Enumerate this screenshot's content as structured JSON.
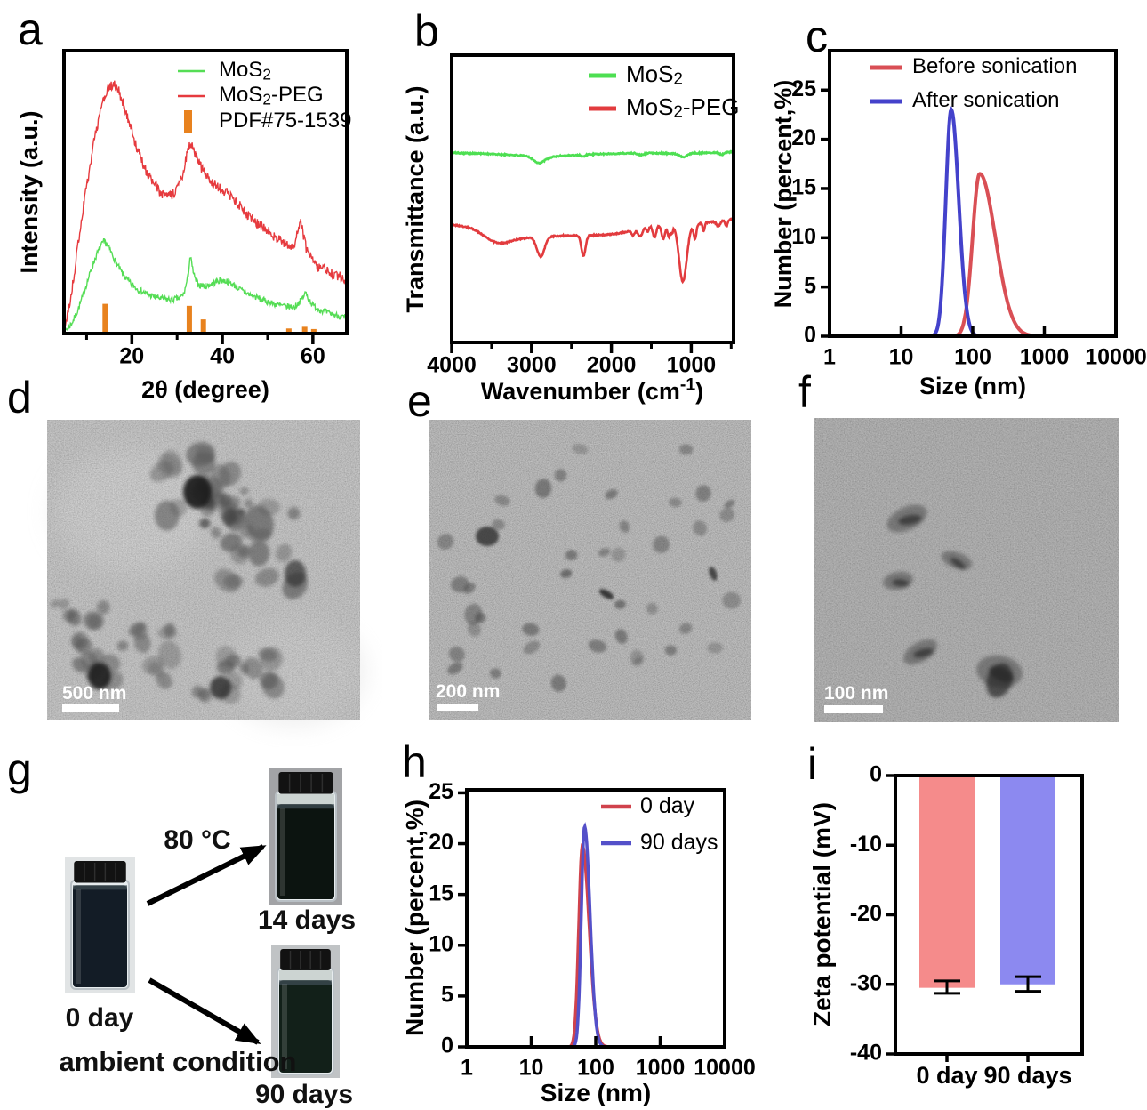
{
  "figure": {
    "panels": [
      {
        "id": "a",
        "letter": "a"
      },
      {
        "id": "b",
        "letter": "b"
      },
      {
        "id": "c",
        "letter": "c"
      },
      {
        "id": "d",
        "letter": "d",
        "scale_bar": "500 nm"
      },
      {
        "id": "e",
        "letter": "e",
        "scale_bar": "200 nm"
      },
      {
        "id": "f",
        "letter": "f",
        "scale_bar": "100 nm"
      },
      {
        "id": "g",
        "letter": "g",
        "labels": {
          "start": "0 day",
          "heat_condition": "80 °C",
          "heat_result": "14 days",
          "ambient_condition": "ambient condition",
          "ambient_result": "90 days"
        }
      },
      {
        "id": "h",
        "letter": "h"
      },
      {
        "id": "i",
        "letter": "i"
      }
    ]
  },
  "chart_data": [
    {
      "id": "a",
      "type": "line",
      "subtype": "xrd",
      "xlabel_parts": [
        "2θ (degree)"
      ],
      "ylabel_parts": [
        "Intensity (a.u.)"
      ],
      "xlim": [
        5,
        67.5
      ],
      "x_ticks": [
        20,
        40,
        60
      ],
      "x_minor_ticks": [
        10,
        30,
        50
      ],
      "legend": [
        {
          "parts": [
            "MoS",
            {
              "sub": "2"
            }
          ],
          "color": "#55dd55",
          "marker": "line"
        },
        {
          "parts": [
            "MoS",
            {
              "sub": "2"
            },
            "-PEG"
          ],
          "color": "#e63a3e",
          "marker": "line"
        },
        {
          "parts": [
            "PDF#75-1539"
          ],
          "color": "#e8821e",
          "marker": "bar"
        }
      ],
      "series": [
        {
          "name": "MoS2-PEG",
          "color": "#e63a3e",
          "noise": 0.018,
          "keypoints": [
            [
              5,
              0.02
            ],
            [
              6,
              0.08
            ],
            [
              7,
              0.18
            ],
            [
              8,
              0.3
            ],
            [
              9,
              0.42
            ],
            [
              10,
              0.52
            ],
            [
              11,
              0.62
            ],
            [
              12,
              0.71
            ],
            [
              13,
              0.78
            ],
            [
              14,
              0.84
            ],
            [
              15,
              0.87
            ],
            [
              16,
              0.88
            ],
            [
              17,
              0.86
            ],
            [
              18,
              0.82
            ],
            [
              19,
              0.77
            ],
            [
              20,
              0.72
            ],
            [
              21,
              0.66
            ],
            [
              22,
              0.62
            ],
            [
              23,
              0.58
            ],
            [
              24,
              0.55
            ],
            [
              25,
              0.525
            ],
            [
              26,
              0.505
            ],
            [
              27,
              0.49
            ],
            [
              28,
              0.485
            ],
            [
              29,
              0.49
            ],
            [
              30,
              0.51
            ],
            [
              31,
              0.55
            ],
            [
              32,
              0.62
            ],
            [
              32.8,
              0.67
            ],
            [
              33.5,
              0.66
            ],
            [
              34.5,
              0.62
            ],
            [
              35.5,
              0.58
            ],
            [
              37,
              0.545
            ],
            [
              38.5,
              0.525
            ],
            [
              40,
              0.51
            ],
            [
              41.5,
              0.49
            ],
            [
              43,
              0.465
            ],
            [
              45,
              0.43
            ],
            [
              47,
              0.4
            ],
            [
              49,
              0.375
            ],
            [
              51,
              0.35
            ],
            [
              53,
              0.325
            ],
            [
              55,
              0.305
            ],
            [
              56,
              0.315
            ],
            [
              56.8,
              0.38
            ],
            [
              57.3,
              0.41
            ],
            [
              57.8,
              0.36
            ],
            [
              58.5,
              0.3
            ],
            [
              59.5,
              0.265
            ],
            [
              61,
              0.24
            ],
            [
              63,
              0.22
            ],
            [
              65,
              0.205
            ],
            [
              67.5,
              0.19
            ]
          ]
        },
        {
          "name": "MoS2",
          "color": "#55dd55",
          "noise": 0.011,
          "keypoints": [
            [
              5,
              0.01
            ],
            [
              6,
              0.02
            ],
            [
              7,
              0.045
            ],
            [
              8,
              0.08
            ],
            [
              9,
              0.125
            ],
            [
              10,
              0.175
            ],
            [
              11,
              0.225
            ],
            [
              12,
              0.27
            ],
            [
              13,
              0.305
            ],
            [
              13.8,
              0.325
            ],
            [
              14.5,
              0.315
            ],
            [
              15.5,
              0.285
            ],
            [
              16.5,
              0.25
            ],
            [
              18,
              0.21
            ],
            [
              19.5,
              0.18
            ],
            [
              21,
              0.16
            ],
            [
              23,
              0.142
            ],
            [
              25,
              0.13
            ],
            [
              27,
              0.122
            ],
            [
              29,
              0.12
            ],
            [
              30.5,
              0.125
            ],
            [
              31.5,
              0.14
            ],
            [
              32.4,
              0.2
            ],
            [
              32.9,
              0.275
            ],
            [
              33.4,
              0.23
            ],
            [
              34,
              0.19
            ],
            [
              35,
              0.17
            ],
            [
              36.5,
              0.168
            ],
            [
              38,
              0.178
            ],
            [
              39.5,
              0.188
            ],
            [
              41,
              0.185
            ],
            [
              42.5,
              0.172
            ],
            [
              44,
              0.155
            ],
            [
              46,
              0.138
            ],
            [
              48,
              0.125
            ],
            [
              50,
              0.112
            ],
            [
              52,
              0.102
            ],
            [
              54,
              0.096
            ],
            [
              56,
              0.095
            ],
            [
              57.5,
              0.12
            ],
            [
              58.4,
              0.145
            ],
            [
              59,
              0.125
            ],
            [
              60,
              0.1
            ],
            [
              61.5,
              0.085
            ],
            [
              63,
              0.075
            ],
            [
              65,
              0.065
            ],
            [
              67.5,
              0.055
            ]
          ]
        }
      ],
      "reference_peaks": {
        "name": "PDF#75-1539",
        "color": "#e8821e",
        "two_theta": [
          14.1,
          32.7,
          35.8,
          54.7,
          58.2,
          60.2
        ],
        "rel_heights": [
          0.105,
          0.098,
          0.05,
          0.018,
          0.024,
          0.016
        ]
      }
    },
    {
      "id": "b",
      "type": "line",
      "subtype": "ftir",
      "xlabel_parts": [
        "Wavenumber (cm",
        {
          "sup": "-1"
        },
        ")"
      ],
      "ylabel_parts": [
        "Transmittance (a.u.)"
      ],
      "xlim": [
        4000,
        470
      ],
      "x_ticks": [
        4000,
        3000,
        2000,
        1000
      ],
      "x_minor_ticks": [
        3500,
        2500,
        1500,
        500
      ],
      "legend": [
        {
          "parts": [
            "MoS",
            {
              "sub": "2"
            }
          ],
          "color": "#4ddf52",
          "marker": "line"
        },
        {
          "parts": [
            "MoS",
            {
              "sub": "2"
            },
            "-PEG"
          ],
          "color": "#e23b3e",
          "marker": "line"
        }
      ],
      "series": [
        {
          "name": "MoS2",
          "color": "#4ddf52",
          "baseline": [
            [
              4000,
              0.66
            ],
            [
              3600,
              0.657
            ],
            [
              3200,
              0.652
            ],
            [
              3000,
              0.648
            ],
            [
              2800,
              0.645
            ],
            [
              2600,
              0.65
            ],
            [
              2300,
              0.654
            ],
            [
              2000,
              0.657
            ],
            [
              1600,
              0.66
            ],
            [
              1200,
              0.657
            ],
            [
              800,
              0.66
            ],
            [
              470,
              0.663
            ]
          ],
          "dips": [
            [
              2905,
              65,
              0.022
            ],
            [
              2350,
              25,
              0.006
            ],
            [
              1630,
              40,
              0.007
            ],
            [
              1100,
              45,
              0.012
            ],
            [
              620,
              25,
              0.008
            ]
          ]
        },
        {
          "name": "MoS2-PEG",
          "color": "#e23b3e",
          "baseline": [
            [
              4000,
              0.41
            ],
            [
              3750,
              0.4
            ],
            [
              3500,
              0.378
            ],
            [
              3300,
              0.37
            ],
            [
              3100,
              0.365
            ],
            [
              2950,
              0.368
            ],
            [
              2700,
              0.37
            ],
            [
              2500,
              0.372
            ],
            [
              2300,
              0.373
            ],
            [
              2100,
              0.374
            ],
            [
              1950,
              0.378
            ],
            [
              1800,
              0.385
            ],
            [
              1700,
              0.392
            ],
            [
              1600,
              0.4
            ],
            [
              1500,
              0.408
            ],
            [
              1400,
              0.408
            ],
            [
              1300,
              0.41
            ],
            [
              1200,
              0.412
            ],
            [
              1150,
              0.413
            ],
            [
              1050,
              0.41
            ],
            [
              980,
              0.408
            ],
            [
              900,
              0.413
            ],
            [
              800,
              0.418
            ],
            [
              700,
              0.42
            ],
            [
              600,
              0.425
            ],
            [
              470,
              0.43
            ]
          ],
          "dips": [
            [
              3420,
              160,
              0.028
            ],
            [
              2885,
              48,
              0.07
            ],
            [
              2350,
              26,
              0.072
            ],
            [
              1730,
              18,
              0.018
            ],
            [
              1640,
              28,
              0.028
            ],
            [
              1545,
              16,
              0.018
            ],
            [
              1460,
              22,
              0.042
            ],
            [
              1350,
              22,
              0.048
            ],
            [
              1280,
              16,
              0.044
            ],
            [
              1242,
              12,
              0.028
            ],
            [
              1105,
              48,
              0.2
            ],
            [
              952,
              16,
              0.05
            ],
            [
              845,
              12,
              0.028
            ],
            [
              660,
              22,
              0.018
            ],
            [
              560,
              16,
              0.022
            ]
          ]
        }
      ]
    },
    {
      "id": "c",
      "type": "line",
      "subtype": "dls",
      "xlabel_parts": [
        "Size (nm)"
      ],
      "ylabel_parts": [
        "Number (percent,%)"
      ],
      "x_scale": "log",
      "xlim": [
        1,
        10000
      ],
      "x_ticks": [
        1,
        10,
        100,
        1000,
        10000
      ],
      "ylim": [
        0,
        29
      ],
      "y_ticks": [
        0,
        5,
        10,
        15,
        20,
        25
      ],
      "legend": [
        {
          "parts": [
            "Before sonication"
          ],
          "color": "#d94f55",
          "marker": "line"
        },
        {
          "parts": [
            "After sonication"
          ],
          "color": "#4442cb",
          "marker": "line"
        }
      ],
      "series": [
        {
          "name": "Before sonication",
          "color": "#d94f55",
          "peak_nm": 125,
          "peak_percent": 16.5,
          "sigma_left": 0.1,
          "sigma_right": 0.22
        },
        {
          "name": "After sonication",
          "color": "#4442cb",
          "peak_nm": 50,
          "peak_percent": 23,
          "sigma_left": 0.075,
          "sigma_right": 0.105
        }
      ]
    },
    {
      "id": "h",
      "type": "line",
      "subtype": "dls",
      "xlabel_parts": [
        "Size (nm)"
      ],
      "ylabel_parts": [
        "Number (percent,%)"
      ],
      "x_scale": "log",
      "xlim": [
        1,
        10000
      ],
      "x_ticks": [
        1,
        10,
        100,
        1000,
        10000
      ],
      "ylim": [
        0,
        25.3
      ],
      "y_ticks": [
        0,
        5,
        10,
        15,
        20,
        25
      ],
      "legend": [
        {
          "parts": [
            "0 day"
          ],
          "color": "#d0424c",
          "marker": "line"
        },
        {
          "parts": [
            "90 days"
          ],
          "color": "#5450c9",
          "marker": "line"
        }
      ],
      "series": [
        {
          "name": "0 day",
          "color": "#d0424c",
          "peak_nm": 62,
          "peak_percent": 19.8,
          "sigma_left": 0.055,
          "sigma_right": 0.105
        },
        {
          "name": "90 days",
          "color": "#5450c9",
          "peak_nm": 67,
          "peak_percent": 21.7,
          "sigma_left": 0.05,
          "sigma_right": 0.085
        }
      ]
    },
    {
      "id": "i",
      "type": "bar",
      "ylabel_parts": [
        "Zeta potential (mV)"
      ],
      "ylim": [
        0,
        -40
      ],
      "y_ticks": [
        0,
        -10,
        -20,
        -30,
        -40
      ],
      "categories": [
        "0 day",
        "90 days"
      ],
      "values": [
        -30.5,
        -30.0
      ],
      "error_ranges": [
        [
          -29.5,
          -31.3
        ],
        [
          -28.9,
          -31.0
        ]
      ],
      "colors": [
        "#f58b8b",
        "#8c89f0"
      ]
    }
  ]
}
